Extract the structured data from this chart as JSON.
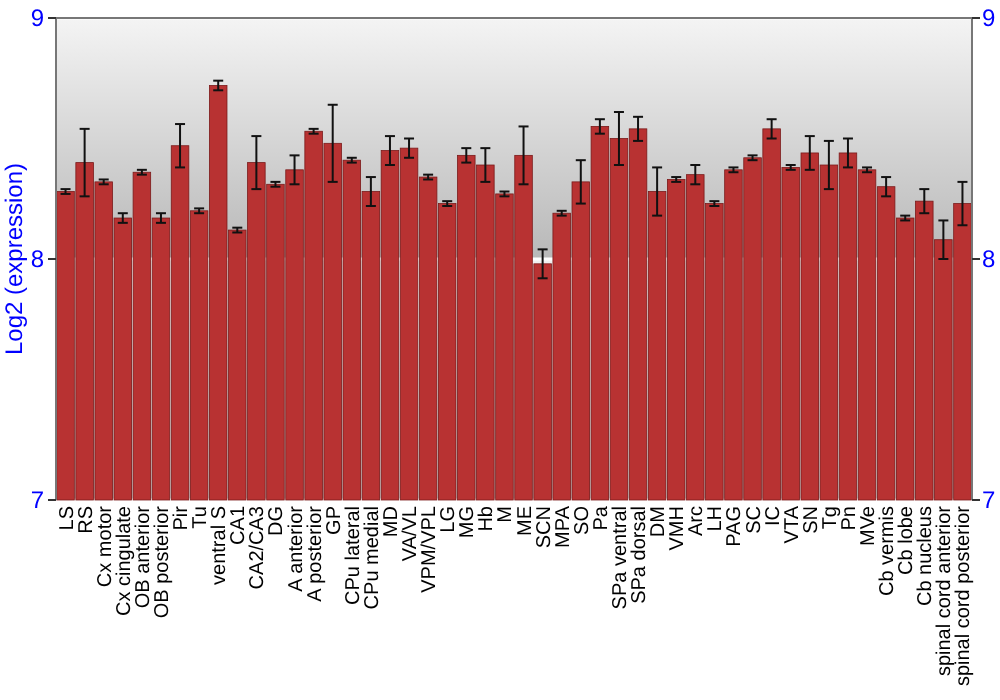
{
  "chart_data": {
    "type": "bar",
    "ylabel": "Log2 (expression)",
    "categories": [
      "LS",
      "RS",
      "Cx motor",
      "Cx cingulate",
      "OB anterior",
      "OB posterior",
      "Pir",
      "Tu",
      "ventral S",
      "CA1",
      "CA2/CA3",
      "DG",
      "A anterior",
      "A posterior",
      "GP",
      "CPu lateral",
      "CPu medial",
      "MD",
      "VA/VL",
      "VPM/VPL",
      "LG",
      "MG",
      "Hb",
      "M",
      "ME",
      "SCN",
      "MPA",
      "SO",
      "Pa",
      "SPa ventral",
      "SPa dorsal",
      "DM",
      "VMH",
      "Arc",
      "LH",
      "PAG",
      "SC",
      "IC",
      "VTA",
      "SN",
      "Tg",
      "Pn",
      "MVe",
      "Cb vermis",
      "Cb lobe",
      "Cb nucleus",
      "spinal cord anterior",
      "spinal cord posterior"
    ],
    "values": [
      8.28,
      8.4,
      8.32,
      8.17,
      8.36,
      8.17,
      8.47,
      8.2,
      8.72,
      8.12,
      8.4,
      8.31,
      8.37,
      8.53,
      8.48,
      8.41,
      8.28,
      8.45,
      8.46,
      8.34,
      8.23,
      8.43,
      8.39,
      8.27,
      8.43,
      7.98,
      8.19,
      8.32,
      8.55,
      8.5,
      8.54,
      8.28,
      8.33,
      8.35,
      8.23,
      8.37,
      8.42,
      8.54,
      8.38,
      8.44,
      8.39,
      8.44,
      8.37,
      8.3,
      8.17,
      8.24,
      8.08,
      8.23
    ],
    "errors": [
      0.01,
      0.14,
      0.01,
      0.02,
      0.01,
      0.02,
      0.09,
      0.01,
      0.02,
      0.01,
      0.11,
      0.01,
      0.06,
      0.01,
      0.16,
      0.01,
      0.06,
      0.06,
      0.04,
      0.01,
      0.01,
      0.03,
      0.07,
      0.01,
      0.12,
      0.06,
      0.01,
      0.09,
      0.03,
      0.11,
      0.05,
      0.1,
      0.01,
      0.04,
      0.01,
      0.01,
      0.01,
      0.04,
      0.01,
      0.07,
      0.1,
      0.06,
      0.01,
      0.04,
      0.01,
      0.05,
      0.08,
      0.09
    ],
    "color": "#b83232",
    "ylim": [
      7,
      9
    ],
    "yticks": [
      7,
      8,
      9
    ],
    "y2lim": [
      7,
      9
    ],
    "y2ticks": [
      7,
      8,
      9
    ],
    "grid": "y"
  }
}
